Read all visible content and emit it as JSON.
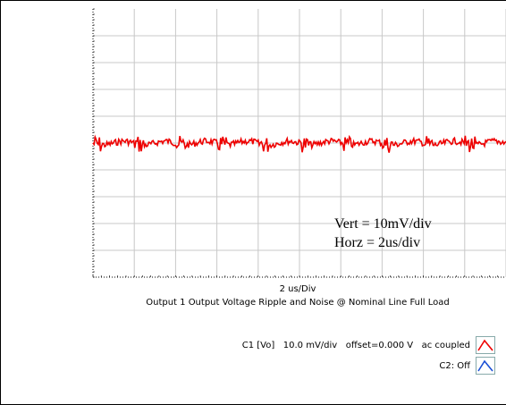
{
  "chart_data": {
    "type": "line",
    "title": "Output 1 Output Voltage Ripple and Noise @ Nominal Line Full Load",
    "xlabel": "2 us/Div",
    "ylabel": "",
    "grid": true,
    "x_divisions": 10,
    "y_divisions": 10,
    "x_unit": "us/div",
    "x_per_div": 2,
    "y_unit": "mV/div",
    "y_per_div": 10,
    "xlim": [
      0,
      20
    ],
    "series": [
      {
        "name": "C1 [Vo]",
        "color": "#ee0000",
        "offset_div": 2.7,
        "ripple_peak_to_peak_mV": 4,
        "period_us": 2
      }
    ],
    "annotations": [
      "Vert = 10mV/div",
      "Horz = 2us/div"
    ]
  },
  "legend": {
    "c1_text": "C1 [Vo]   10.0 mV/div   offset=0.000 V   ac coupled",
    "c1_color": "#ee0000",
    "c2_text": "C2: Off",
    "c2_color": "#1a4fd6"
  }
}
